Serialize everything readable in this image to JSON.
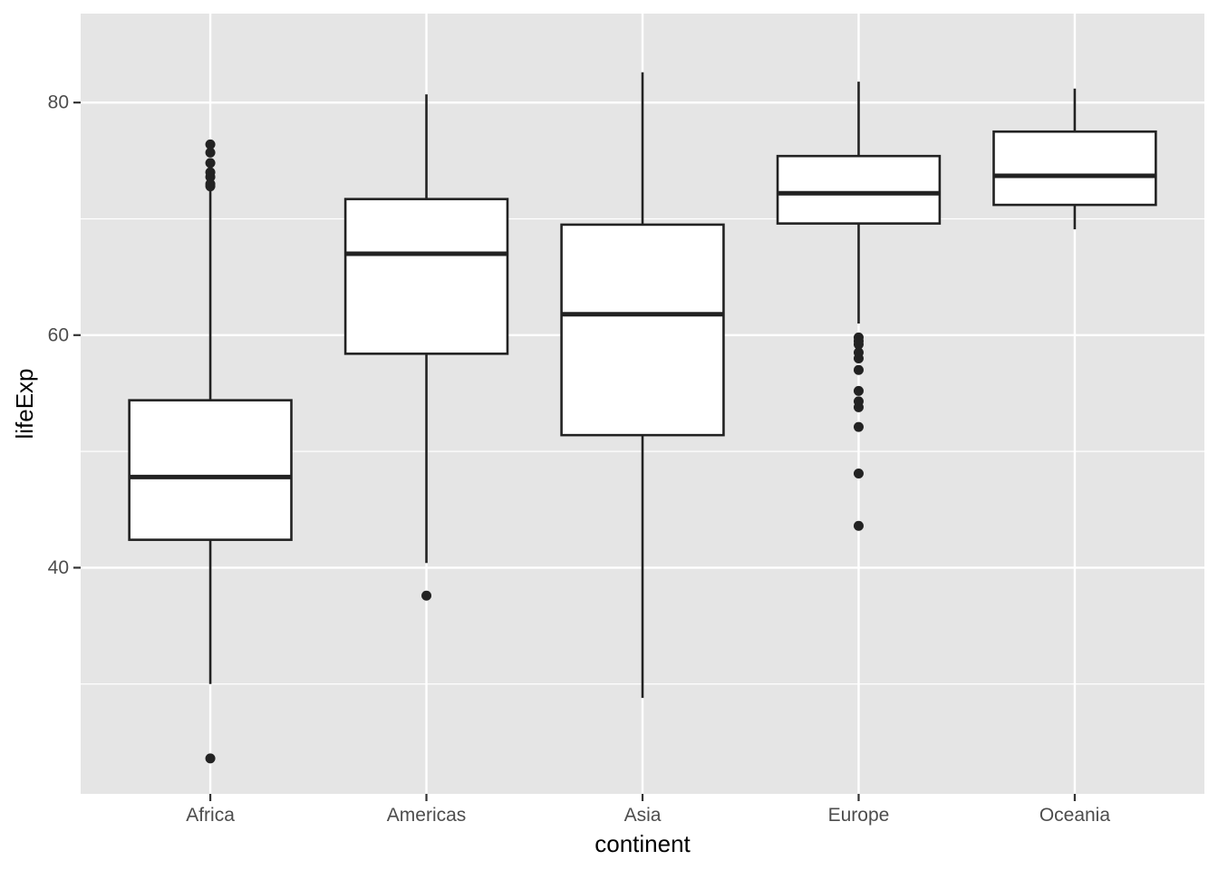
{
  "chart_data": {
    "type": "boxplot",
    "xlabel": "continent",
    "ylabel": "lifeExp",
    "ylim": [
      23.6,
      84.6
    ],
    "y_ticks": [
      40,
      60,
      80
    ],
    "y_minor_ticks": [
      30,
      50,
      70
    ],
    "grid": true,
    "categories": [
      "Africa",
      "Americas",
      "Asia",
      "Europe",
      "Oceania"
    ],
    "boxes": [
      {
        "category": "Africa",
        "whisker_low": 30.0,
        "q1": 42.4,
        "median": 47.8,
        "q3": 54.4,
        "whisker_high": 72.8,
        "outliers": [
          23.6,
          72.8,
          73.0,
          73.6,
          74.0,
          74.8,
          75.7,
          76.4
        ]
      },
      {
        "category": "Americas",
        "whisker_low": 40.4,
        "q1": 58.4,
        "median": 67.0,
        "q3": 71.7,
        "whisker_high": 80.7,
        "outliers": [
          37.6
        ]
      },
      {
        "category": "Asia",
        "whisker_low": 28.8,
        "q1": 51.4,
        "median": 61.8,
        "q3": 69.5,
        "whisker_high": 82.6,
        "outliers": []
      },
      {
        "category": "Europe",
        "whisker_low": 61.0,
        "q1": 69.6,
        "median": 72.2,
        "q3": 75.4,
        "whisker_high": 81.8,
        "outliers": [
          43.6,
          48.1,
          52.1,
          53.8,
          54.3,
          55.2,
          57.0,
          58.0,
          58.5,
          59.2,
          59.5,
          59.8
        ]
      },
      {
        "category": "Oceania",
        "whisker_low": 69.1,
        "q1": 71.2,
        "median": 73.7,
        "q3": 77.5,
        "whisker_high": 81.2,
        "outliers": []
      }
    ],
    "colors": {
      "panel": "#e5e5e5",
      "grid": "#ffffff",
      "box_fill": "#ffffff",
      "box_stroke": "#222222",
      "tick_text": "#4d4d4d",
      "tick_mark": "#333333",
      "title_text": "#000000"
    }
  }
}
